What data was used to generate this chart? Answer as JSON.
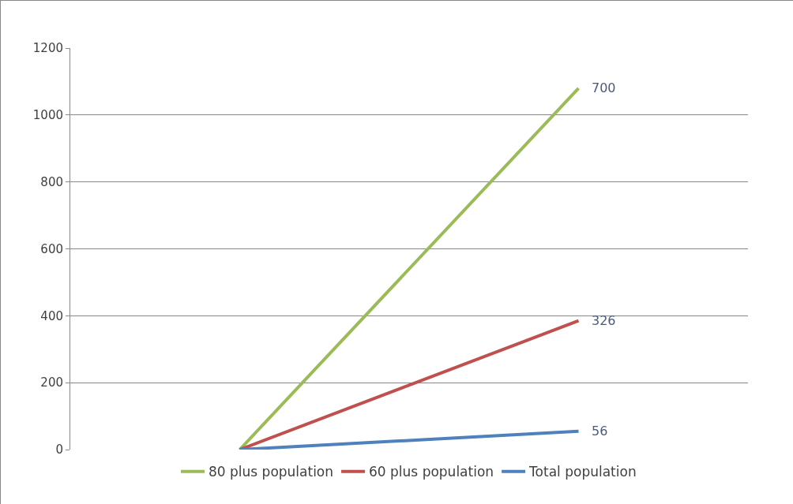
{
  "chart_data": {
    "type": "line",
    "categories": [
      null,
      null
    ],
    "series": [
      {
        "name": "80 plus population",
        "color": "#9bbb59",
        "values": [
          0,
          1080
        ]
      },
      {
        "name": "60 plus population",
        "color": "#c0504d",
        "values": [
          0,
          385
        ]
      },
      {
        "name": "Total population",
        "color": "#4f81bd",
        "values": [
          0,
          55
        ]
      }
    ],
    "annotations": [
      "700",
      "326",
      "56"
    ],
    "ylim": [
      0,
      1200
    ],
    "yticks": [
      0,
      200,
      400,
      600,
      800,
      1000,
      1200
    ],
    "grid": "y",
    "legend": "bottom",
    "marker": "none",
    "line_style": "solid"
  }
}
